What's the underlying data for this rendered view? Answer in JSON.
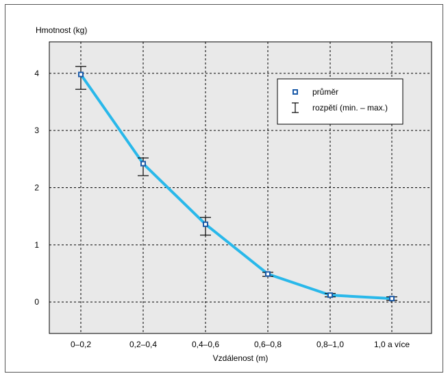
{
  "chart_data": {
    "type": "line",
    "ylabel": "Hmotnost (kg)",
    "xlabel": "Vzdálenost (m)",
    "categories": [
      "0–0,2",
      "0,2–0,4",
      "0,4–0,6",
      "0,6–0,8",
      "0,8–1,0",
      "1,0 a více"
    ],
    "y_ticks": [
      "0",
      "1",
      "2",
      "3",
      "4"
    ],
    "ylim": [
      -0.55,
      4.55
    ],
    "grid": true,
    "legend_position": "top-right",
    "series": [
      {
        "name": "průměr",
        "values": [
          3.98,
          2.42,
          1.36,
          0.49,
          0.12,
          0.06
        ],
        "error_min": [
          3.72,
          2.21,
          1.17,
          0.45,
          0.09,
          0.03
        ],
        "error_max": [
          4.12,
          2.52,
          1.48,
          0.52,
          0.15,
          0.09
        ]
      }
    ],
    "legend": {
      "mean_label": "průměr",
      "range_label": "rozpětí (min. – max.)"
    },
    "colors": {
      "line": "#29b8ea",
      "marker": "#1a5aa8",
      "plot_bg": "#e9e9e9",
      "error_bar": "#000000"
    }
  }
}
